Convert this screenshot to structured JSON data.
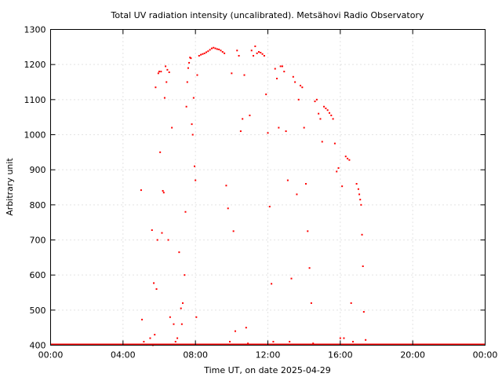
{
  "chart_data": {
    "type": "scatter",
    "title": "Total UV radiation intensity (uncalibrated). Metsähovi Radio Observatory",
    "xlabel": "Time UT, on date 2025-04-29",
    "ylabel": "Arbitrary unit",
    "x_range_hours": [
      0,
      24
    ],
    "ylim": [
      400,
      1300
    ],
    "x_tick_labels": [
      "00:00",
      "04:00",
      "08:00",
      "12:00",
      "16:00",
      "20:00",
      "00:00"
    ],
    "y_ticks": [
      400,
      500,
      600,
      700,
      800,
      900,
      1000,
      1100,
      1200,
      1300
    ],
    "grid": true,
    "marker_color": "#ff0000",
    "series": [
      {
        "baseline": {
          "x_from": 0,
          "x_to": 24,
          "y": 400
        },
        "points": [
          [
            5.0,
            842
          ],
          [
            5.05,
            473
          ],
          [
            5.15,
            410
          ],
          [
            5.3,
            401
          ],
          [
            5.5,
            420
          ],
          [
            5.6,
            728
          ],
          [
            5.65,
            400
          ],
          [
            5.7,
            577
          ],
          [
            5.75,
            430
          ],
          [
            5.8,
            1135
          ],
          [
            5.85,
            560
          ],
          [
            5.9,
            700
          ],
          [
            5.95,
            1175
          ],
          [
            6.0,
            1180
          ],
          [
            6.05,
            950
          ],
          [
            6.1,
            1180
          ],
          [
            6.15,
            720
          ],
          [
            6.2,
            840
          ],
          [
            6.25,
            835
          ],
          [
            6.3,
            1105
          ],
          [
            6.35,
            1195
          ],
          [
            6.4,
            1150
          ],
          [
            6.45,
            1185
          ],
          [
            6.5,
            700
          ],
          [
            6.55,
            1178
          ],
          [
            6.6,
            480
          ],
          [
            6.7,
            1020
          ],
          [
            6.8,
            460
          ],
          [
            6.9,
            410
          ],
          [
            7.0,
            420
          ],
          [
            7.1,
            665
          ],
          [
            7.2,
            505
          ],
          [
            7.25,
            460
          ],
          [
            7.3,
            520
          ],
          [
            7.4,
            600
          ],
          [
            7.45,
            780
          ],
          [
            7.5,
            1080
          ],
          [
            7.55,
            1150
          ],
          [
            7.6,
            1190
          ],
          [
            7.65,
            1205
          ],
          [
            7.7,
            1220
          ],
          [
            7.75,
            1218
          ],
          [
            7.8,
            1030
          ],
          [
            7.85,
            1000
          ],
          [
            7.9,
            1105
          ],
          [
            7.95,
            910
          ],
          [
            8.0,
            870
          ],
          [
            8.05,
            480
          ],
          [
            8.1,
            1170
          ],
          [
            8.2,
            1225
          ],
          [
            8.3,
            1228
          ],
          [
            8.4,
            1230
          ],
          [
            8.5,
            1232
          ],
          [
            8.6,
            1235
          ],
          [
            8.7,
            1238
          ],
          [
            8.8,
            1242
          ],
          [
            8.9,
            1246
          ],
          [
            9.0,
            1248
          ],
          [
            9.1,
            1246
          ],
          [
            9.2,
            1244
          ],
          [
            9.3,
            1243
          ],
          [
            9.4,
            1240
          ],
          [
            9.5,
            1236
          ],
          [
            9.6,
            1232
          ],
          [
            9.7,
            855
          ],
          [
            9.8,
            790
          ],
          [
            9.9,
            410
          ],
          [
            10.0,
            1175
          ],
          [
            10.1,
            725
          ],
          [
            10.2,
            440
          ],
          [
            10.3,
            1240
          ],
          [
            10.4,
            1225
          ],
          [
            10.5,
            1010
          ],
          [
            10.6,
            1045
          ],
          [
            10.7,
            1170
          ],
          [
            10.8,
            450
          ],
          [
            10.9,
            405
          ],
          [
            11.0,
            1055
          ],
          [
            11.1,
            1240
          ],
          [
            11.2,
            1225
          ],
          [
            11.3,
            1252
          ],
          [
            11.4,
            1232
          ],
          [
            11.5,
            1236
          ],
          [
            11.6,
            1234
          ],
          [
            11.7,
            1230
          ],
          [
            11.8,
            1225
          ],
          [
            11.9,
            1115
          ],
          [
            12.0,
            1005
          ],
          [
            12.1,
            795
          ],
          [
            12.2,
            575
          ],
          [
            12.3,
            410
          ],
          [
            12.4,
            1188
          ],
          [
            12.5,
            1160
          ],
          [
            12.6,
            1020
          ],
          [
            12.7,
            1195
          ],
          [
            12.8,
            1195
          ],
          [
            12.9,
            1180
          ],
          [
            13.0,
            1010
          ],
          [
            13.1,
            870
          ],
          [
            13.2,
            410
          ],
          [
            13.3,
            590
          ],
          [
            13.4,
            1165
          ],
          [
            13.5,
            1150
          ],
          [
            13.6,
            830
          ],
          [
            13.7,
            1100
          ],
          [
            13.8,
            1140
          ],
          [
            13.9,
            1135
          ],
          [
            14.0,
            1020
          ],
          [
            14.1,
            860
          ],
          [
            14.2,
            725
          ],
          [
            14.3,
            620
          ],
          [
            14.4,
            520
          ],
          [
            14.5,
            405
          ],
          [
            14.6,
            1095
          ],
          [
            14.7,
            1100
          ],
          [
            14.8,
            1060
          ],
          [
            14.9,
            1045
          ],
          [
            15.0,
            980
          ],
          [
            15.1,
            1080
          ],
          [
            15.2,
            1075
          ],
          [
            15.3,
            1070
          ],
          [
            15.4,
            1062
          ],
          [
            15.5,
            1055
          ],
          [
            15.6,
            1045
          ],
          [
            15.7,
            975
          ],
          [
            15.8,
            895
          ],
          [
            15.9,
            905
          ],
          [
            16.0,
            420
          ],
          [
            16.1,
            853
          ],
          [
            16.2,
            420
          ],
          [
            16.3,
            938
          ],
          [
            16.4,
            932
          ],
          [
            16.5,
            928
          ],
          [
            16.6,
            520
          ],
          [
            16.7,
            410
          ],
          [
            16.9,
            860
          ],
          [
            17.0,
            845
          ],
          [
            17.05,
            830
          ],
          [
            17.1,
            815
          ],
          [
            17.15,
            800
          ],
          [
            17.2,
            715
          ],
          [
            17.25,
            625
          ],
          [
            17.3,
            495
          ],
          [
            17.4,
            415
          ],
          [
            17.6,
            402
          ]
        ]
      }
    ]
  }
}
